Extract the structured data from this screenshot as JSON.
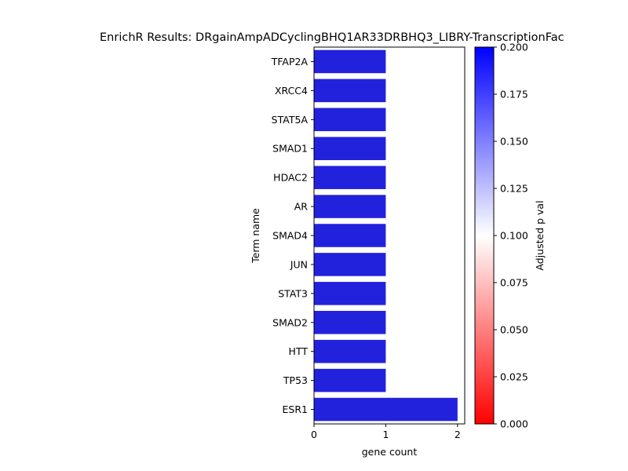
{
  "chart_data": {
    "type": "bar",
    "orientation": "horizontal",
    "title": "EnrichR Results: DRgainAmpADCyclingBHQ1AR33DRBHQ3_LIBRY-TranscriptionFac",
    "xlabel": "gene count",
    "ylabel": "Term name",
    "categories": [
      "TFAP2A",
      "XRCC4",
      "STAT5A",
      "SMAD1",
      "HDAC2",
      "AR",
      "SMAD4",
      "JUN",
      "STAT3",
      "SMAD2",
      "HTT",
      "TP53",
      "ESR1"
    ],
    "values": [
      1,
      1,
      1,
      1,
      1,
      1,
      1,
      1,
      1,
      1,
      1,
      1,
      2
    ],
    "bar_color": "#2222dd",
    "xlim": [
      0,
      2.1
    ],
    "xticks": [
      "0",
      "1",
      "2"
    ],
    "grid": false,
    "colorbar": {
      "label": "Adjusted p val",
      "range": [
        0,
        0.2
      ],
      "ticks": [
        "0.000",
        "0.025",
        "0.050",
        "0.075",
        "0.100",
        "0.125",
        "0.150",
        "0.175",
        "0.200"
      ],
      "colors": [
        "#ff0000",
        "#ffffff",
        "#0000ff"
      ]
    }
  }
}
